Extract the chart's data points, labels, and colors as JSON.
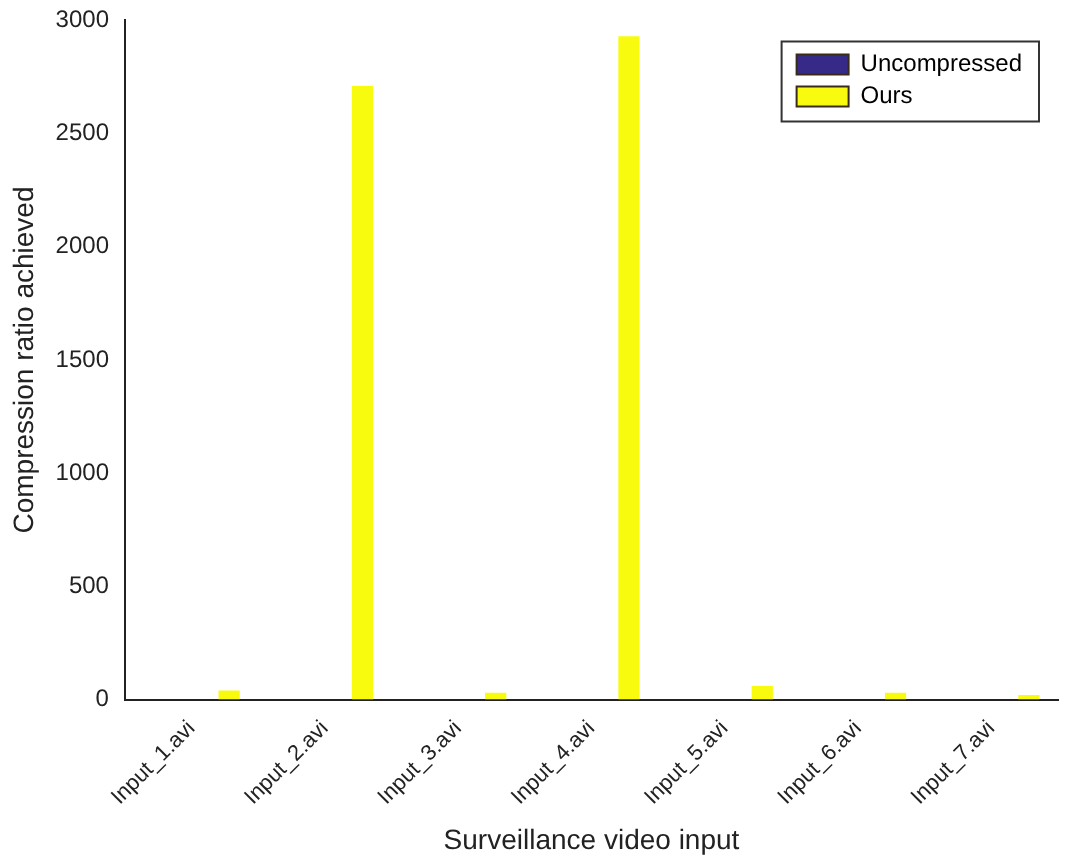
{
  "chart_data": {
    "type": "bar",
    "xlabel": "Surveillance video input",
    "ylabel": "Compression ratio achieved",
    "categories": [
      "Input_1.avi",
      "Input_2.avi",
      "Input_3.avi",
      "Input_4.avi",
      "Input_5.avi",
      "Input_6.avi",
      "Input_7.avi"
    ],
    "series": [
      {
        "name": "Uncompressed",
        "color": "#352a87",
        "values": [
          0,
          0,
          0,
          0,
          0,
          0,
          0
        ]
      },
      {
        "color": "#0d9bd8",
        "values": [
          0,
          0,
          0,
          0,
          0,
          0,
          0
        ]
      },
      {
        "color": "#a5be6a",
        "values": [
          0,
          0,
          0,
          0,
          0,
          0,
          0
        ]
      },
      {
        "name": "Ours",
        "color": "#f9fb0e",
        "values": [
          40,
          2710,
          30,
          2930,
          60,
          30,
          20
        ]
      }
    ],
    "ylim": [
      0,
      3000
    ],
    "yticks": [
      0,
      500,
      1000,
      1500,
      2000,
      2500,
      3000
    ],
    "grid": false,
    "legend": "top right"
  }
}
